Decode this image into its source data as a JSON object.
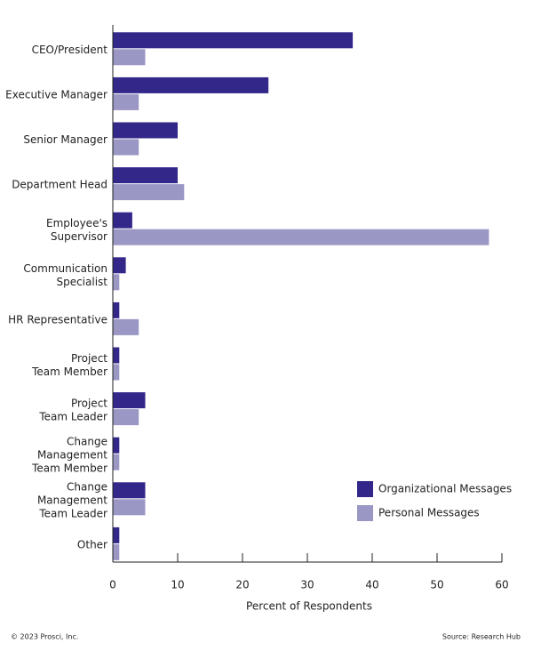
{
  "chart_data": {
    "type": "bar",
    "orientation": "horizontal",
    "categories": [
      "CEO/President",
      "Executive Manager",
      "Senior Manager",
      "Department Head",
      "Employee's\nSupervisor",
      "Communication\nSpecialist",
      "HR Representative",
      "Project\nTeam Member",
      "Project\nTeam Leader",
      "Change\nManagement\nTeam Member",
      "Change\nManagement\nTeam Leader",
      "Other"
    ],
    "series": [
      {
        "name": "Organizational Messages",
        "color": "#33288a",
        "values": [
          37,
          24,
          10,
          10,
          3,
          2,
          1,
          1,
          5,
          1,
          5,
          1
        ]
      },
      {
        "name": "Personal Messages",
        "color": "#9b97c4",
        "values": [
          5,
          4,
          4,
          11,
          58,
          1,
          4,
          1,
          4,
          1,
          5,
          1
        ]
      }
    ],
    "xlabel": "Percent of Respondents",
    "xlim": [
      0,
      60
    ],
    "xticks": [
      0,
      10,
      20,
      30,
      40,
      50,
      60
    ],
    "legend": "lower right",
    "footnote": "© 2023 Prosci, Inc.",
    "source": "Source: Research Hub"
  }
}
